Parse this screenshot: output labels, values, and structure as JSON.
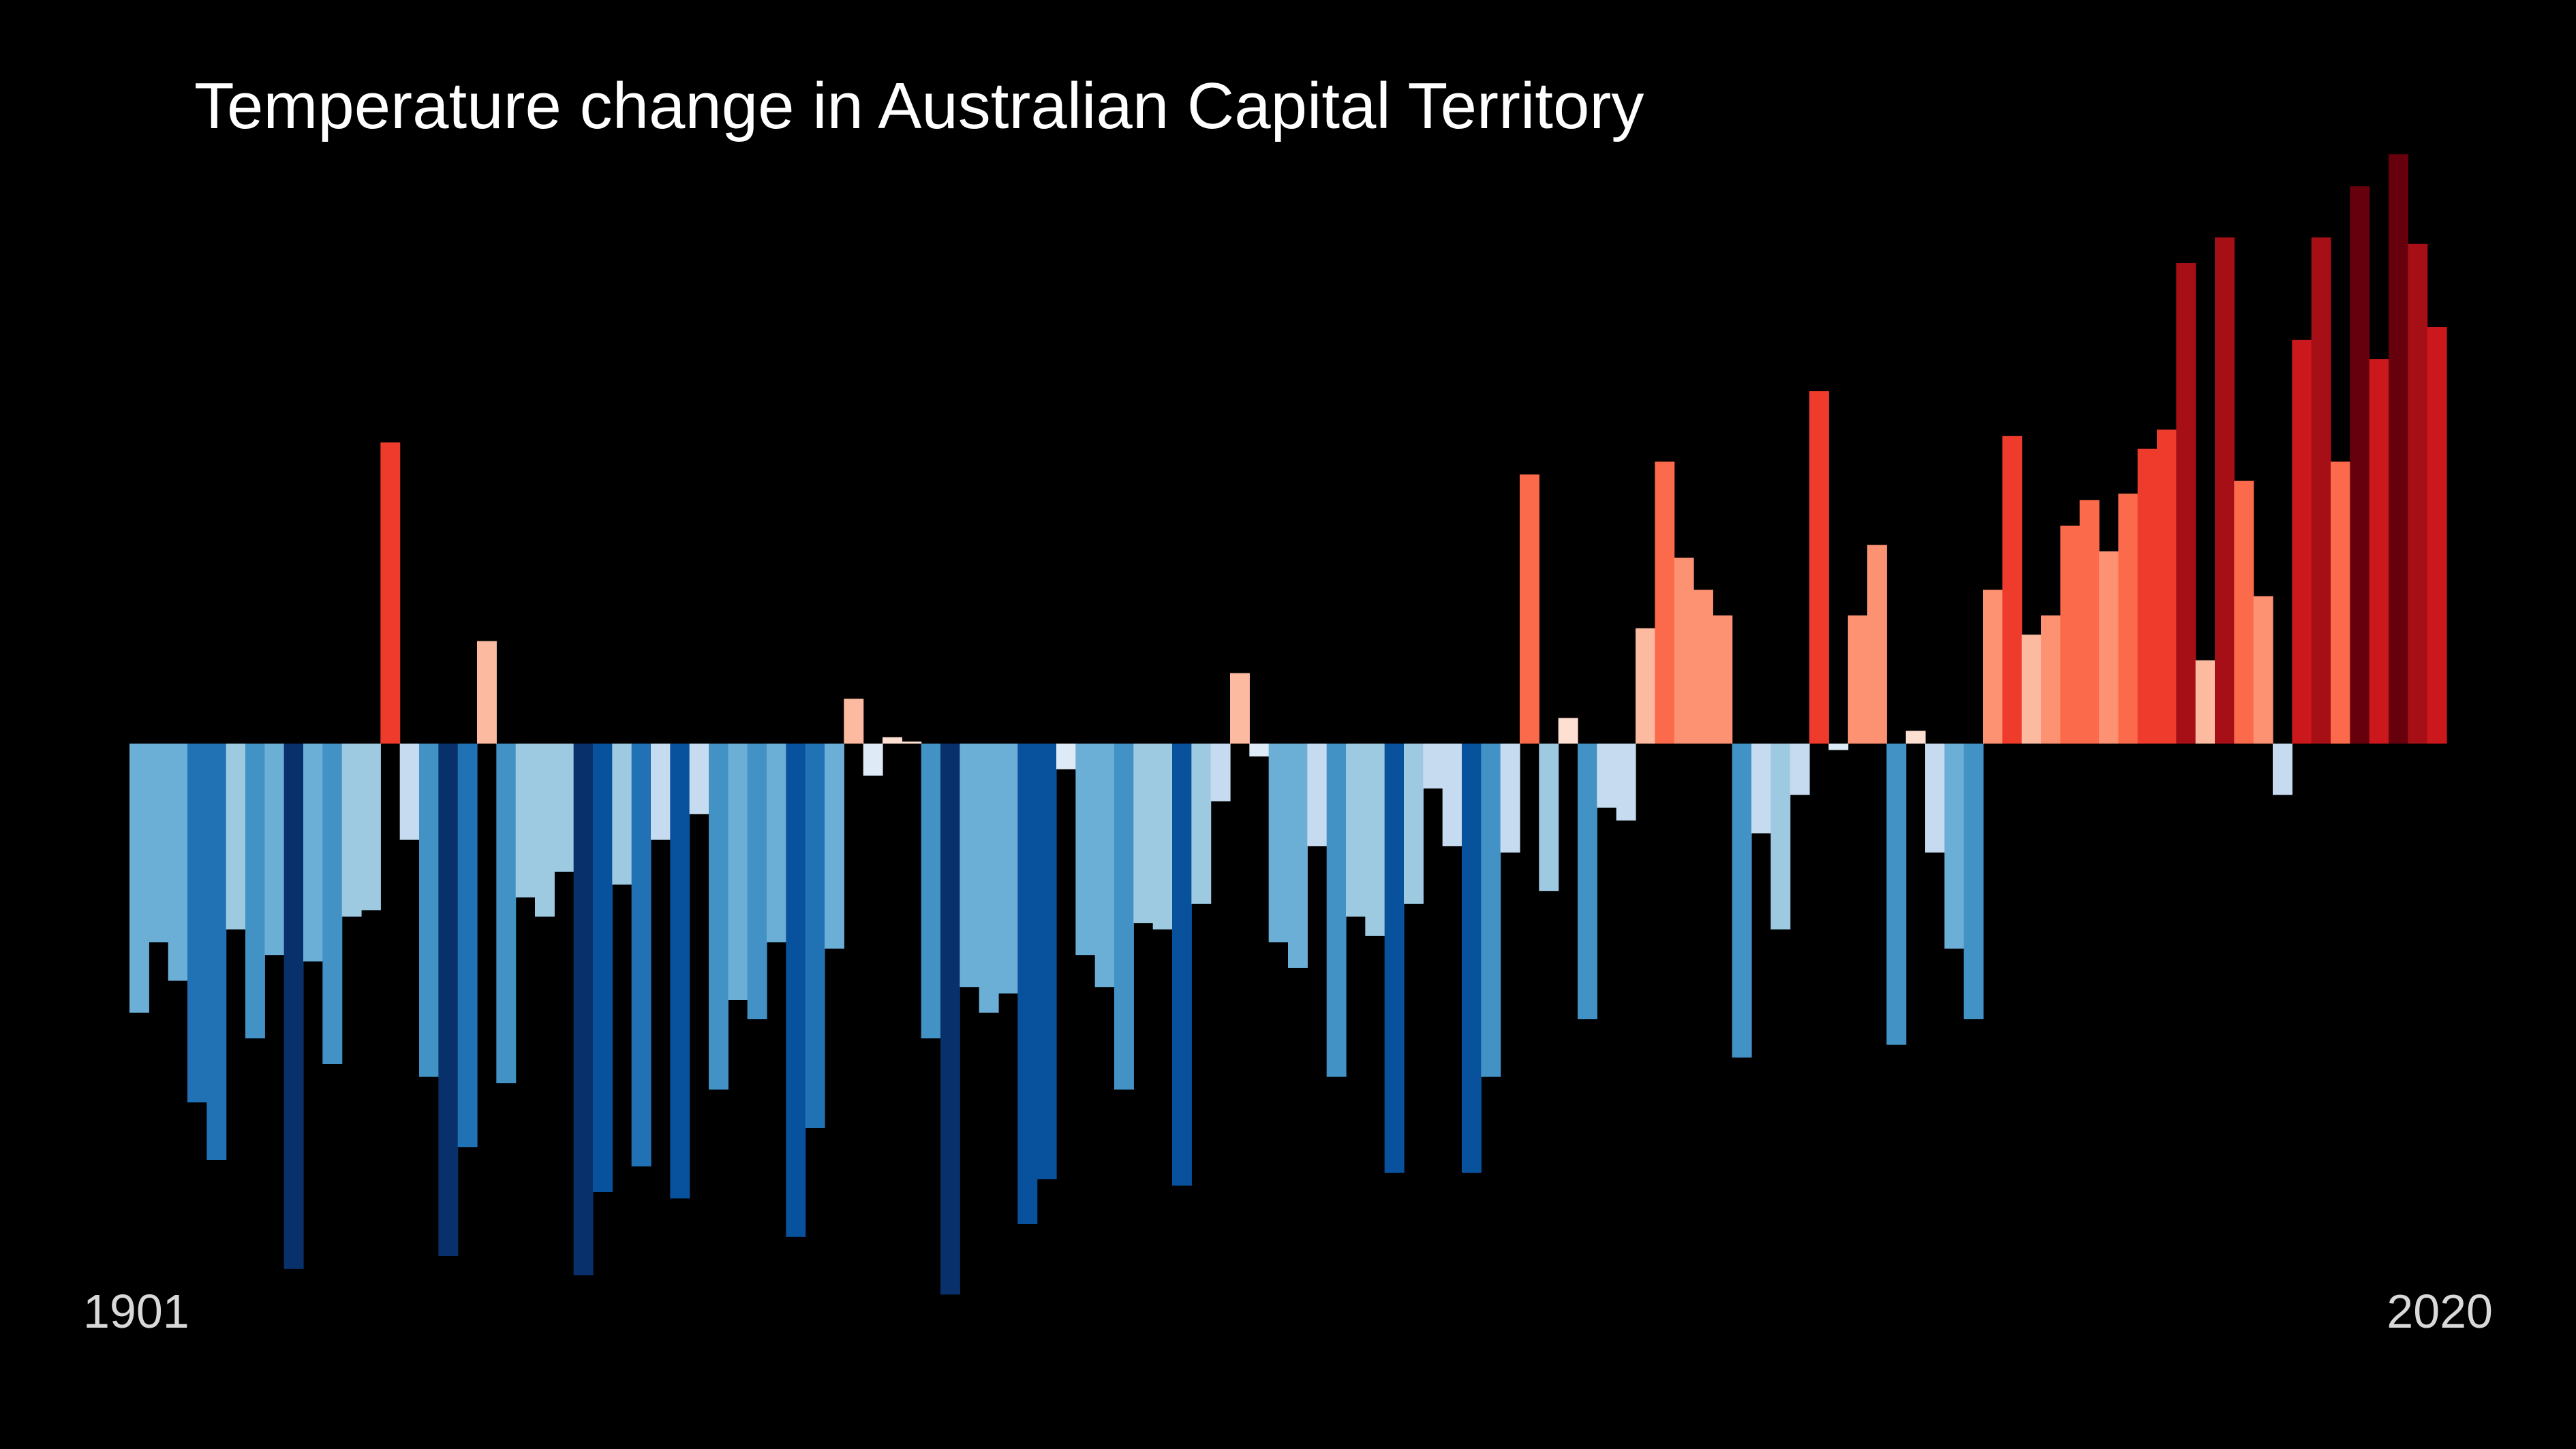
{
  "chart_data": {
    "type": "bar",
    "title": "Temperature change in Australian Capital Territory",
    "x_start_label": "1901",
    "x_end_label": "2020",
    "x_start": 1901,
    "x_end": 2020,
    "ylim": [
      -0.85,
      0.93
    ],
    "grid": false,
    "legend": "none",
    "values": [
      -0.42,
      -0.31,
      -0.37,
      -0.56,
      -0.65,
      -0.29,
      -0.46,
      -0.33,
      -0.82,
      -0.34,
      -0.5,
      -0.27,
      -0.26,
      0.47,
      -0.15,
      -0.52,
      -0.8,
      -0.63,
      0.16,
      -0.53,
      -0.24,
      -0.27,
      -0.2,
      -0.83,
      -0.7,
      -0.22,
      -0.66,
      -0.15,
      -0.71,
      -0.11,
      -0.54,
      -0.4,
      -0.43,
      -0.31,
      -0.77,
      -0.6,
      -0.32,
      0.07,
      -0.05,
      0.01,
      0.0,
      -0.46,
      -0.86,
      -0.38,
      -0.42,
      -0.39,
      -0.75,
      -0.68,
      -0.04,
      -0.33,
      -0.38,
      -0.54,
      -0.28,
      -0.29,
      -0.69,
      -0.25,
      -0.09,
      0.11,
      -0.02,
      -0.31,
      -0.35,
      -0.16,
      -0.52,
      -0.27,
      -0.3,
      -0.67,
      -0.25,
      -0.07,
      -0.16,
      -0.67,
      -0.52,
      -0.17,
      0.42,
      -0.23,
      0.04,
      -0.43,
      -0.1,
      -0.12,
      0.18,
      0.44,
      0.29,
      0.24,
      0.2,
      -0.49,
      -0.14,
      -0.29,
      -0.08,
      0.55,
      -0.01,
      0.2,
      0.31,
      -0.47,
      0.02,
      -0.17,
      -0.32,
      -0.43,
      0.24,
      0.48,
      0.17,
      0.2,
      0.34,
      0.38,
      0.3,
      0.39,
      0.46,
      0.49,
      0.75,
      0.13,
      0.79,
      0.41,
      0.23,
      -0.08,
      0.63,
      0.79,
      0.44,
      0.87,
      0.6,
      0.92,
      0.78,
      0.65
    ]
  }
}
